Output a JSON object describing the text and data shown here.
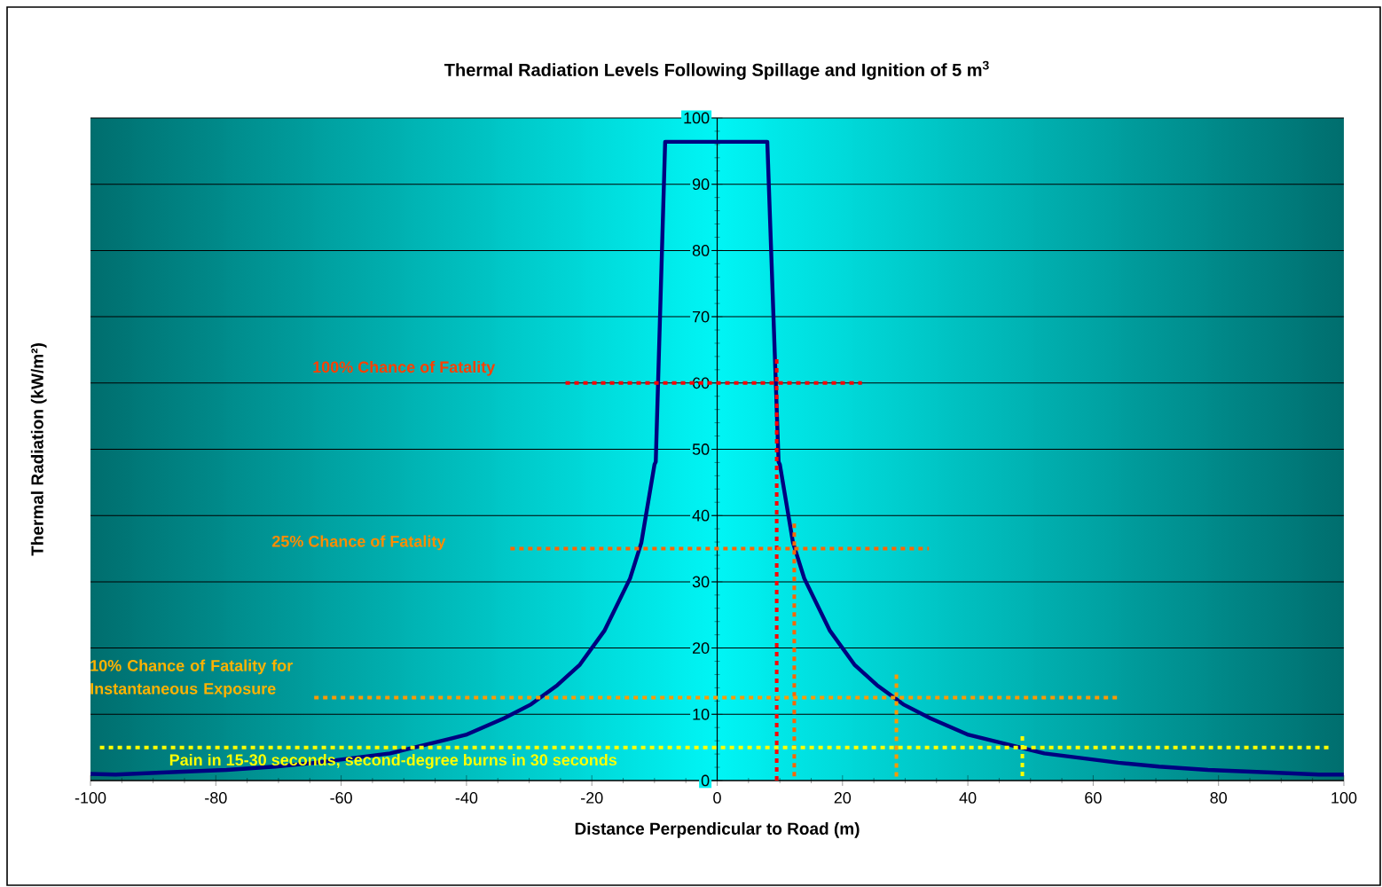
{
  "chart_data": {
    "type": "line",
    "title": "Thermal Radiation Levels Following Spillage and Ignition of 5 m$^{3}$",
    "xlabel": "Distance Perpendicular to Road (m)",
    "ylabel": "Thermal Radiation (kW/m²)",
    "xlim": [
      -100,
      100
    ],
    "ylim": [
      0,
      100
    ],
    "xticks": [
      -100,
      -80,
      -60,
      -40,
      -20,
      0,
      20,
      40,
      60,
      80,
      100
    ],
    "yticks": [
      0,
      10,
      20,
      30,
      40,
      50,
      60,
      70,
      80,
      90,
      100
    ],
    "grid": "y",
    "marker": "none",
    "line_style": "solid",
    "series": [
      {
        "color": "#000080",
        "x": [
          -100,
          -96,
          -88.7,
          -78.3,
          -70.5,
          -64,
          -52.2,
          -48.3,
          -40.1,
          -34,
          -29.7,
          -25.5,
          -21.9,
          -18,
          -13.9,
          -12.1,
          -10,
          -9.8,
          -8.3,
          8,
          9.8,
          10,
          12.1,
          13.9,
          18,
          21.9,
          25.5,
          29.7,
          34,
          40.1,
          48.3,
          52.2,
          64,
          70.5,
          78.3,
          88.7,
          96,
          100
        ],
        "values": [
          1,
          0.9,
          1.2,
          1.6,
          2.1,
          2.7,
          4.1,
          5,
          6.9,
          9.4,
          11.5,
          14.4,
          17.5,
          22.6,
          30.5,
          35.9,
          47.7,
          48.1,
          96.4,
          96.4,
          48.1,
          47.7,
          35.9,
          30.5,
          22.6,
          17.5,
          14.4,
          11.5,
          9.4,
          6.9,
          5,
          4.1,
          2.7,
          2.1,
          1.6,
          1.2,
          0.9,
          0.9
        ]
      },
      {
        "color": "#ff0000",
        "line_style": "dotted",
        "x": [
          -24.2,
          23.1
        ],
        "values": [
          60,
          60
        ]
      },
      {
        "color": "#ff0000",
        "line_style": "dotted",
        "x": [
          9.5,
          9.5
        ],
        "values": [
          63.6,
          0
        ]
      },
      {
        "color": "#ff6600",
        "line_style": "dotted",
        "x": [
          -33,
          33.8
        ],
        "values": [
          35,
          35
        ]
      },
      {
        "color": "#ff6600",
        "line_style": "dotted",
        "x": [
          12.3,
          12.3
        ],
        "values": [
          38.8,
          0
        ]
      },
      {
        "color": "#ff9900",
        "line_style": "dotted",
        "x": [
          -64.3,
          64.1
        ],
        "values": [
          12.5,
          12.5
        ]
      },
      {
        "color": "#ff9900",
        "line_style": "dotted",
        "x": [
          28.6,
          28.6
        ],
        "values": [
          16,
          0
        ]
      },
      {
        "color": "#ffff00",
        "line_style": "dotted",
        "x": [
          -98.5,
          97.8
        ],
        "values": [
          5,
          5
        ]
      },
      {
        "color": "#ffff00",
        "line_style": "dotted",
        "x": [
          48.7,
          48.7
        ],
        "values": [
          6.7,
          0
        ]
      }
    ],
    "annotations": [
      "100% Chance of Fatality",
      "25% Chance of Fatality",
      "10% Chance of Fatality for Instantaneous Exposure",
      "Pain in 15-30 seconds, second-degree burns in 30 seconds"
    ]
  }
}
